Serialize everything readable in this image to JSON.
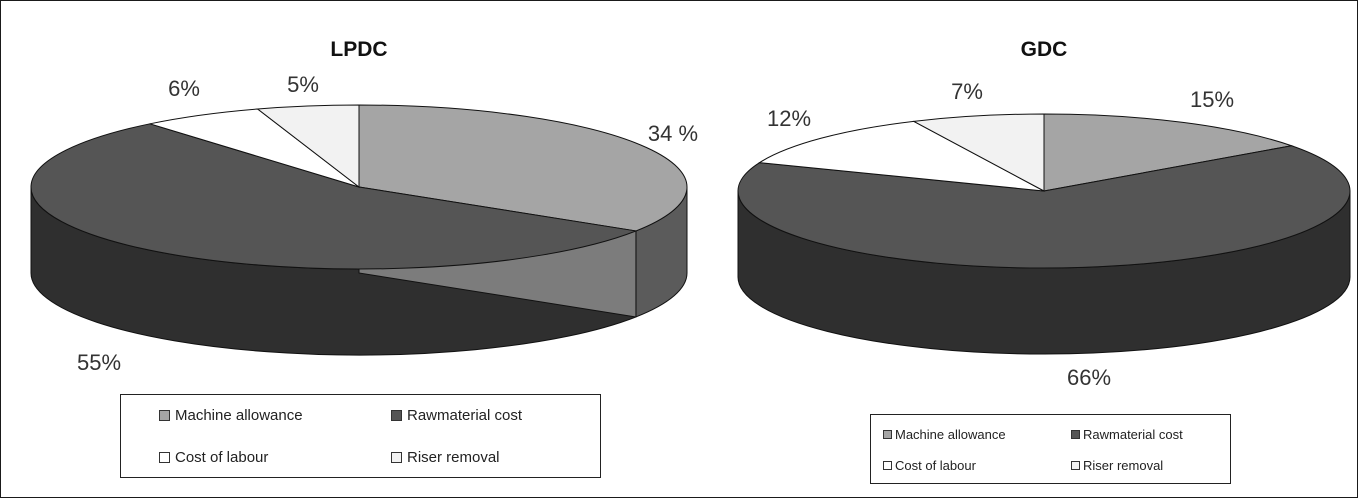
{
  "chart_data": [
    {
      "type": "pie",
      "title": "LPDC",
      "categories": [
        "Machine allowance",
        "Rawmaterial cost",
        "Cost of labour",
        "Riser removal"
      ],
      "values": [
        34,
        55,
        6,
        5
      ],
      "value_labels": [
        "34 %",
        "55%",
        "6%",
        "5%"
      ],
      "colors": [
        "#a5a5a5",
        "#555555",
        "#ffffff",
        "#f2f2f2"
      ],
      "legend": [
        "Machine allowance",
        "Rawmaterial cost",
        "Cost of labour",
        "Riser removal"
      ],
      "legend_position": "bottom",
      "style": "3d"
    },
    {
      "type": "pie",
      "title": "GDC",
      "categories": [
        "Machine allowance",
        "Rawmaterial cost",
        "Cost of labour",
        "Riser removal"
      ],
      "values": [
        15,
        66,
        12,
        7
      ],
      "value_labels": [
        "15%",
        "66%",
        "12%",
        "7%"
      ],
      "colors": [
        "#a5a5a5",
        "#555555",
        "#ffffff",
        "#f2f2f2"
      ],
      "legend": [
        "Machine allowance",
        "Rawmaterial cost",
        "Cost of labour",
        "Riser removal"
      ],
      "legend_position": "bottom",
      "style": "3d"
    }
  ]
}
